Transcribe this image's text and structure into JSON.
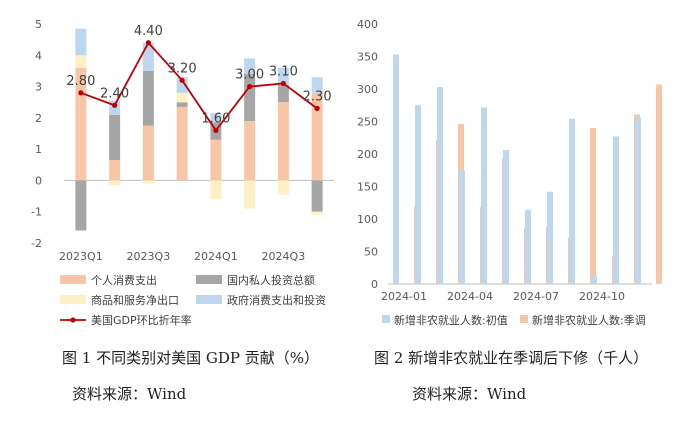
{
  "figures": [
    {
      "caption": "图 1  不同类别对美国 GDP 贡献（%）",
      "source": "资料来源：Wind"
    },
    {
      "caption": "图 2  新增非农就业在季调后下修（千人）",
      "source": "资料来源：Wind"
    }
  ],
  "chart_data": [
    {
      "type": "bar",
      "stacked": true,
      "x_tick_labels": [
        "2023Q1",
        "2023Q3",
        "2024Q1",
        "2024Q3"
      ],
      "x_tick_indices": [
        0,
        2,
        4,
        6
      ],
      "categories": [
        "2023Q1",
        "2023Q2",
        "2023Q3",
        "2023Q4",
        "2024Q1",
        "2024Q2",
        "2024Q3",
        "2024Q4"
      ],
      "ylim": [
        -2,
        5
      ],
      "yticks": [
        -2,
        -1,
        0,
        1,
        2,
        3,
        4,
        5
      ],
      "grid": false,
      "legend_position": "bottom",
      "series": [
        {
          "name": "个人消费支出",
          "color": "#f7c6a6",
          "values": [
            3.6,
            0.65,
            1.75,
            2.35,
            1.3,
            1.9,
            2.5,
            2.8
          ]
        },
        {
          "name": "国内私人投资总额",
          "color": "#a6a6a6",
          "values": [
            -1.6,
            1.45,
            1.75,
            0.15,
            0.55,
            1.5,
            0.55,
            -1.0
          ]
        },
        {
          "name": "商品和服务净出口",
          "color": "#fdf0c4",
          "values": [
            0.4,
            -0.15,
            -0.1,
            0.3,
            -0.6,
            -0.9,
            -0.45,
            -0.1
          ]
        },
        {
          "name": "政府消费支出和投资",
          "color": "#bdd7ee",
          "values": [
            0.85,
            0.45,
            0.9,
            0.5,
            0.3,
            0.5,
            0.55,
            0.5
          ]
        },
        {
          "name": "美国GDP环比折年率",
          "type": "line",
          "color": "#c00000",
          "values": [
            2.8,
            2.4,
            4.4,
            3.2,
            1.6,
            3.0,
            3.1,
            2.3
          ],
          "labels": [
            "2.80",
            "2.40",
            "4.40",
            "3.20",
            "1.60",
            "3.00",
            "3.10",
            "2.30"
          ]
        }
      ]
    },
    {
      "type": "bar",
      "x_tick_labels": [
        "2024-01",
        "2024-04",
        "2024-07",
        "2024-10"
      ],
      "x_tick_indices": [
        0,
        3,
        6,
        9
      ],
      "categories": [
        "2024-01",
        "2024-02",
        "2024-03",
        "2024-04",
        "2024-05",
        "2024-06",
        "2024-07",
        "2024-08",
        "2024-09",
        "2024-10",
        "2024-11",
        "2024-12"
      ],
      "ylim": [
        0,
        400
      ],
      "yticks": [
        0,
        50,
        100,
        150,
        200,
        250,
        300,
        350,
        400
      ],
      "grid": false,
      "legend_position": "bottom",
      "series": [
        {
          "name": "新增非农就业人数:初值",
          "color": "#bdd7ee",
          "values": [
            353,
            275,
            303,
            175,
            272,
            206,
            114,
            142,
            254,
            12,
            227,
            256
          ]
        },
        {
          "name": "新增非农就业人数:季调",
          "color": "#f7c6a6",
          "values": [
            119,
            222,
            246,
            118,
            193,
            87,
            88,
            71,
            240,
            44,
            261,
            307
          ]
        }
      ]
    }
  ]
}
